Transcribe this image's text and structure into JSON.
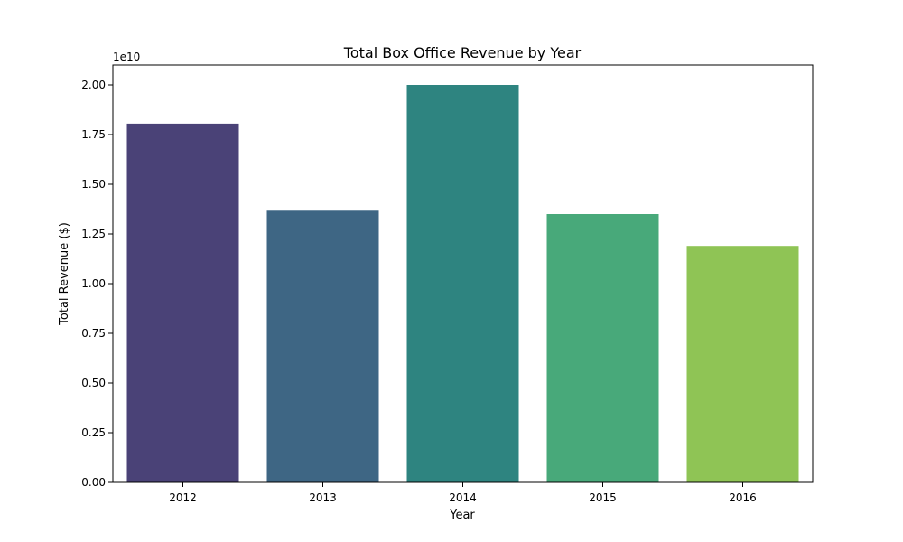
{
  "chart_data": {
    "type": "bar",
    "title": "Total Box Office Revenue by Year",
    "xlabel": "Year",
    "ylabel": "Total Revenue ($)",
    "y_offset_label": "1e10",
    "categories": [
      "2012",
      "2013",
      "2014",
      "2015",
      "2016"
    ],
    "values": [
      18050000000,
      13670000000,
      20000000000,
      13500000000,
      11900000000
    ],
    "colors": [
      "#4a4277",
      "#3e6684",
      "#2e8480",
      "#48a97a",
      "#8fc455"
    ],
    "ylim": [
      0,
      21000000000
    ],
    "y_ticks": [
      0,
      2500000000,
      5000000000,
      7500000000,
      10000000000,
      12500000000,
      15000000000,
      17500000000,
      20000000000
    ],
    "y_tick_labels": [
      "0.00",
      "0.25",
      "0.50",
      "0.75",
      "1.00",
      "1.25",
      "1.50",
      "1.75",
      "2.00"
    ],
    "grid": false,
    "legend": "none"
  }
}
